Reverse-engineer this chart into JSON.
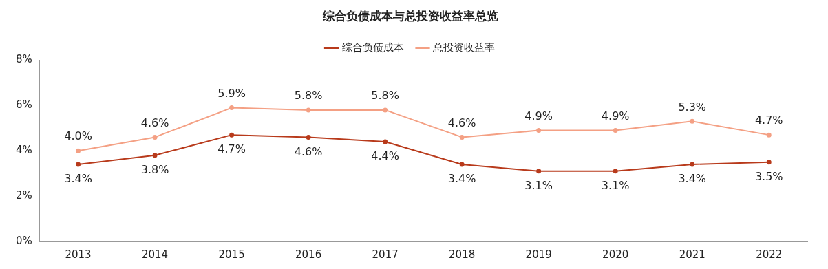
{
  "chart_data": {
    "type": "line",
    "title": "综合负债成本与总投资收益率总览",
    "categories": [
      "2013",
      "2014",
      "2015",
      "2016",
      "2017",
      "2018",
      "2019",
      "2020",
      "2021",
      "2022"
    ],
    "series": [
      {
        "name": "综合负债成本",
        "color": "#b83a1b",
        "values": [
          3.4,
          3.8,
          4.7,
          4.6,
          4.4,
          3.4,
          3.1,
          3.1,
          3.4,
          3.5
        ],
        "value_labels": [
          "3.4%",
          "3.8%",
          "4.7%",
          "4.6%",
          "4.4%",
          "3.4%",
          "3.1%",
          "3.1%",
          "3.4%",
          "3.5%"
        ]
      },
      {
        "name": "总投资收益率",
        "color": "#f4a084",
        "values": [
          4.0,
          4.6,
          5.9,
          5.8,
          5.8,
          4.6,
          4.9,
          4.9,
          5.3,
          4.7
        ],
        "value_labels": [
          "4.0%",
          "4.6%",
          "5.9%",
          "5.8%",
          "5.8%",
          "4.6%",
          "4.9%",
          "4.9%",
          "5.3%",
          "4.7%"
        ]
      }
    ],
    "ylim": [
      0,
      8
    ],
    "yticks": [
      {
        "value": 0,
        "label": "0%"
      },
      {
        "value": 2,
        "label": "2%"
      },
      {
        "value": 4,
        "label": "4%"
      },
      {
        "value": 6,
        "label": "6%"
      },
      {
        "value": 8,
        "label": "8%"
      }
    ],
    "grid": false,
    "legend": "top",
    "marker": "circle",
    "line_style": "solid"
  }
}
